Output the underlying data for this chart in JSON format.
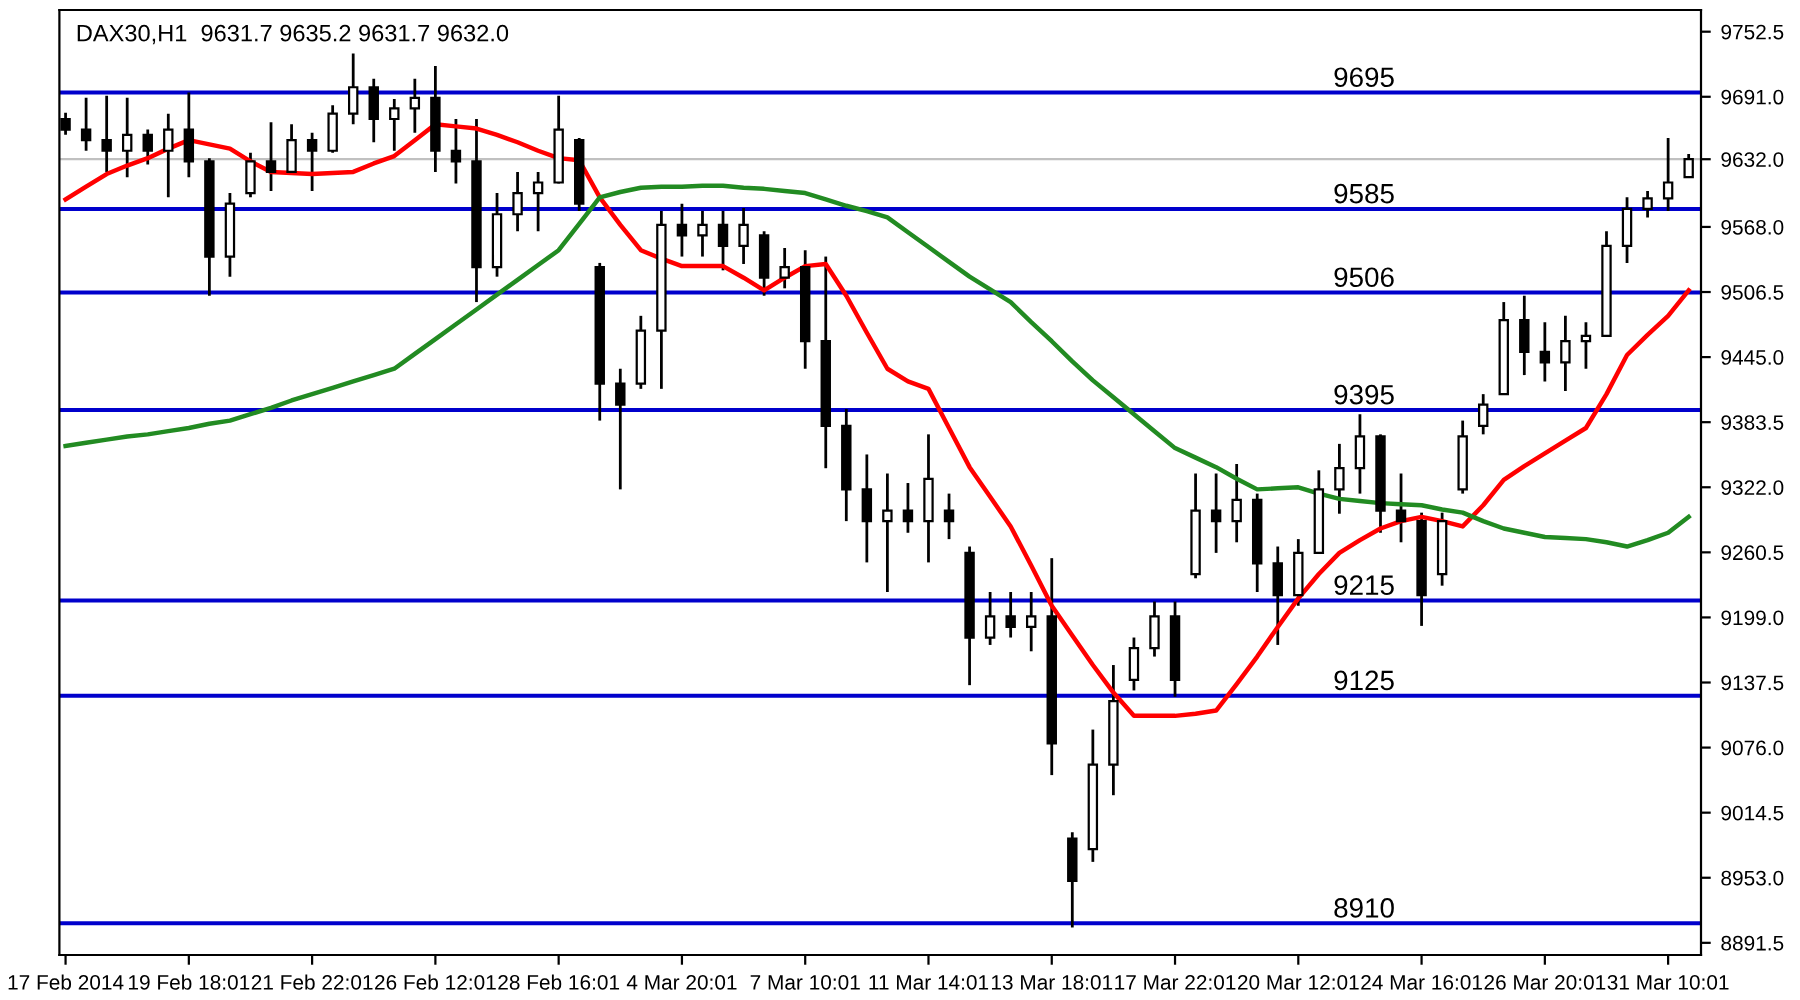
{
  "chart_data": {
    "type": "candlestick",
    "title": "DAX30,H1  9631.7 9635.2 9631.7 9632.0",
    "categories": [
      "17 Feb 2014",
      null,
      null,
      null,
      null,
      null,
      "19 Feb 18:01",
      null,
      null,
      null,
      null,
      null,
      "21 Feb 22:01",
      null,
      null,
      null,
      null,
      null,
      "26 Feb 12:01",
      null,
      null,
      null,
      null,
      null,
      "28 Feb 16:01",
      null,
      null,
      null,
      null,
      null,
      "4 Mar 20:01",
      null,
      null,
      null,
      null,
      null,
      "7 Mar 10:01",
      null,
      null,
      null,
      null,
      null,
      "11 Mar 14:01",
      null,
      null,
      null,
      null,
      null,
      "13 Mar 18:01",
      null,
      null,
      null,
      null,
      null,
      "17 Mar 22:01",
      null,
      null,
      null,
      null,
      null,
      "20 Mar 12:01",
      null,
      null,
      null,
      null,
      null,
      "24 Mar 16:01",
      null,
      null,
      null,
      null,
      null,
      "26 Mar 20:01",
      null,
      null,
      null,
      null,
      null,
      "31 Mar 10:01",
      null
    ],
    "color": "#000000",
    "ohlc": [
      [
        9670,
        9676,
        9655,
        9660
      ],
      [
        9660,
        9690,
        9640,
        9650
      ],
      [
        9650,
        9692,
        9620,
        9640
      ],
      [
        9640,
        9690,
        9615,
        9655
      ],
      [
        9655,
        9660,
        9627,
        9640
      ],
      [
        9640,
        9675,
        9596,
        9660
      ],
      [
        9660,
        9695,
        9615,
        9630
      ],
      [
        9630,
        9633,
        9503,
        9540
      ],
      [
        9540,
        9600,
        9521,
        9590
      ],
      [
        9600,
        9638,
        9596,
        9630
      ],
      [
        9630,
        9667,
        9602,
        9620
      ],
      [
        9620,
        9665,
        9618,
        9650
      ],
      [
        9650,
        9657,
        9602,
        9640
      ],
      [
        9640,
        9683,
        9638,
        9675
      ],
      [
        9675,
        9732,
        9665,
        9700
      ],
      [
        9700,
        9708,
        9648,
        9670
      ],
      [
        9670,
        9689,
        9640,
        9680
      ],
      [
        9680,
        9708,
        9657,
        9690
      ],
      [
        9690,
        9720,
        9620,
        9640
      ],
      [
        9640,
        9670,
        9609,
        9630
      ],
      [
        9630,
        9670,
        9497,
        9530
      ],
      [
        9530,
        9600,
        9521,
        9580
      ],
      [
        9580,
        9620,
        9564,
        9600
      ],
      [
        9600,
        9620,
        9564,
        9610
      ],
      [
        9610,
        9692,
        9609,
        9660
      ],
      [
        9650,
        9652,
        9583,
        9590
      ],
      [
        9530,
        9534,
        9385,
        9420
      ],
      [
        9420,
        9434,
        9320,
        9400
      ],
      [
        9420,
        9484,
        9415,
        9470
      ],
      [
        9470,
        9583,
        9415,
        9570
      ],
      [
        9570,
        9590,
        9540,
        9560
      ],
      [
        9560,
        9583,
        9540,
        9570
      ],
      [
        9570,
        9583,
        9527,
        9550
      ],
      [
        9550,
        9586,
        9533,
        9570
      ],
      [
        9560,
        9564,
        9503,
        9520
      ],
      [
        9520,
        9548,
        9510,
        9530
      ],
      [
        9530,
        9546,
        9434,
        9460
      ],
      [
        9460,
        9540,
        9340,
        9380
      ],
      [
        9380,
        9396,
        9290,
        9320
      ],
      [
        9320,
        9353,
        9251,
        9290
      ],
      [
        9290,
        9335,
        9223,
        9300
      ],
      [
        9300,
        9326,
        9279,
        9290
      ],
      [
        9290,
        9372,
        9251,
        9330
      ],
      [
        9300,
        9316,
        9273,
        9290
      ],
      [
        9260,
        9266,
        9135,
        9180
      ],
      [
        9180,
        9223,
        9173,
        9200
      ],
      [
        9200,
        9223,
        9180,
        9190
      ],
      [
        9190,
        9223,
        9167,
        9200
      ],
      [
        9200,
        9255,
        9050,
        9080
      ],
      [
        8990,
        8996,
        8906,
        8950
      ],
      [
        8980,
        9093,
        8968,
        9060
      ],
      [
        9060,
        9154,
        9031,
        9120
      ],
      [
        9140,
        9180,
        9130,
        9170
      ],
      [
        9170,
        9214,
        9162,
        9200
      ],
      [
        9200,
        9214,
        9124,
        9140
      ],
      [
        9240,
        9335,
        9236,
        9300
      ],
      [
        9300,
        9335,
        9260,
        9290
      ],
      [
        9290,
        9344,
        9270,
        9310
      ],
      [
        9310,
        9316,
        9223,
        9250
      ],
      [
        9250,
        9266,
        9173,
        9220
      ],
      [
        9220,
        9273,
        9210,
        9260
      ],
      [
        9260,
        9338,
        9260,
        9320
      ],
      [
        9320,
        9363,
        9297,
        9340
      ],
      [
        9340,
        9391,
        9316,
        9370
      ],
      [
        9370,
        9372,
        9279,
        9300
      ],
      [
        9300,
        9335,
        9270,
        9290
      ],
      [
        9290,
        9298,
        9191,
        9220
      ],
      [
        9240,
        9298,
        9229,
        9290
      ],
      [
        9320,
        9385,
        9316,
        9370
      ],
      [
        9380,
        9410,
        9372,
        9400
      ],
      [
        9410,
        9497,
        9410,
        9480
      ],
      [
        9480,
        9503,
        9428,
        9450
      ],
      [
        9450,
        9478,
        9422,
        9440
      ],
      [
        9440,
        9484,
        9413,
        9460
      ],
      [
        9460,
        9478,
        9434,
        9465
      ],
      [
        9465,
        9564,
        9465,
        9550
      ],
      [
        9550,
        9596,
        9534,
        9585
      ],
      [
        9585,
        9602,
        9577,
        9595
      ],
      [
        9595,
        9652,
        9583,
        9610
      ],
      [
        9615,
        9637,
        9615,
        9632
      ]
    ],
    "series": [
      {
        "type": "line",
        "color": "#ff0000",
        "values": [
          9594,
          9606,
          9618,
          9626,
          9633,
          9642,
          9650,
          9646,
          9642,
          9630,
          9620,
          9619,
          9618,
          9619,
          9620,
          9628,
          9635,
          9650,
          9665,
          9663,
          9661,
          9655,
          9648,
          9640,
          9633,
          9631,
          9596,
          9570,
          9546,
          9538,
          9531,
          9531,
          9531,
          9520,
          9508,
          9520,
          9531,
          9533,
          9503,
          9468,
          9434,
          9422,
          9415,
          9378,
          9341,
          9313,
          9285,
          9248,
          9210,
          9182,
          9154,
          9128,
          9106,
          9106,
          9106,
          9108,
          9111,
          9136,
          9162,
          9190,
          9217,
          9240,
          9260,
          9272,
          9283,
          9290,
          9294,
          9290,
          9285,
          9305,
          9329,
          9342,
          9354,
          9366,
          9378,
          9410,
          9447,
          9466,
          9484,
          9508
        ]
      },
      {
        "type": "line",
        "color": "#228b22",
        "values": [
          9361,
          9364,
          9367,
          9370,
          9372,
          9375,
          9378,
          9382,
          9385,
          9391,
          9397,
          9404,
          9410,
          9416,
          9422,
          9428,
          9434,
          9448,
          9462,
          9476,
          9490,
          9504,
          9518,
          9532,
          9546,
          9571,
          9596,
          9601,
          9605,
          9606,
          9606,
          9607,
          9607,
          9605,
          9604,
          9602,
          9600,
          9594,
          9588,
          9583,
          9577,
          9563,
          9549,
          9535,
          9521,
          9509,
          9497,
          9478,
          9460,
          9441,
          9423,
          9407,
          9391,
          9375,
          9359,
          9350,
          9341,
          9330,
          9320,
          9321,
          9322,
          9316,
          9311,
          9309,
          9307,
          9306,
          9305,
          9301,
          9298,
          9290,
          9283,
          9279,
          9275,
          9274,
          9273,
          9270,
          9266,
          9272,
          9279,
          9294
        ]
      }
    ],
    "ylim": [
      8880,
      9773
    ],
    "yticks": [
      {
        "value": 8891.5,
        "label": "8891.5"
      },
      {
        "value": 8953,
        "label": "8953.0"
      },
      {
        "value": 9014.5,
        "label": "9014.5"
      },
      {
        "value": 9076,
        "label": "9076.0"
      },
      {
        "value": 9137.5,
        "label": "9137.5"
      },
      {
        "value": 9199,
        "label": "9199.0"
      },
      {
        "value": 9260.5,
        "label": "9260.5"
      },
      {
        "value": 9322,
        "label": "9322.0"
      },
      {
        "value": 9383.5,
        "label": "9383.5"
      },
      {
        "value": 9445,
        "label": "9445.0"
      },
      {
        "value": 9506.5,
        "label": "9506.5"
      },
      {
        "value": 9568,
        "label": "9568.0"
      },
      {
        "value": 9632,
        "label": "9632.0"
      },
      {
        "value": 9691,
        "label": "9691.0"
      },
      {
        "value": 9752.5,
        "label": "9752.5"
      }
    ],
    "ref_lines": [
      {
        "axis": "y",
        "value": 9695,
        "label": "9695",
        "color": "#0000cc"
      },
      {
        "axis": "y",
        "value": 9585,
        "label": "9585",
        "color": "#0000cc"
      },
      {
        "axis": "y",
        "value": 9506,
        "label": "9506",
        "color": "#0000cc"
      },
      {
        "axis": "y",
        "value": 9395,
        "label": "9395",
        "color": "#0000cc"
      },
      {
        "axis": "y",
        "value": 9215,
        "label": "9215",
        "color": "#0000cc"
      },
      {
        "axis": "y",
        "value": 9125,
        "label": "9125",
        "color": "#0000cc"
      },
      {
        "axis": "y",
        "value": 8910,
        "label": "8910",
        "color": "#0000cc"
      },
      {
        "axis": "y",
        "value": 9632,
        "color": "#c0c0c0"
      }
    ],
    "grid": false,
    "legend": false
  }
}
